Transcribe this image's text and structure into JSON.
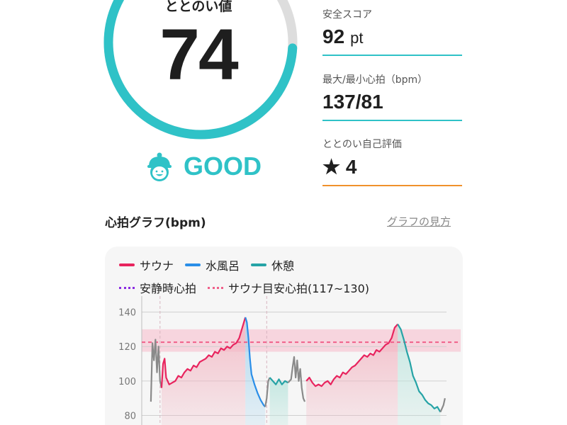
{
  "gauge": {
    "title": "ととのい値",
    "value": "74",
    "score": 74,
    "max": 100,
    "status": "GOOD",
    "status_icon": "mascot-face-icon",
    "accent": "#2fc2c7",
    "track": "#dddddd"
  },
  "stats": [
    {
      "label": "安全スコア",
      "value": "92",
      "unit": "pt",
      "line_color": "#2fc2c7"
    },
    {
      "label": "最大/最小心拍（bpm）",
      "value": "137/81",
      "unit": "",
      "line_color": "#2fc2c7"
    },
    {
      "label": "ととのい自己評価",
      "value": "★ 4",
      "unit": "",
      "line_color": "#f0912c"
    }
  ],
  "section": {
    "title": "心拍グラフ(bpm)",
    "link": "グラフの見方"
  },
  "chart_data": {
    "type": "line",
    "legend": [
      {
        "name": "サウナ",
        "color": "#e8245e",
        "style": "solid"
      },
      {
        "name": "水風呂",
        "color": "#2a8ee8",
        "style": "solid"
      },
      {
        "name": "休憩",
        "color": "#26a3a6",
        "style": "solid"
      },
      {
        "name": "安静時心拍",
        "color": "#8a2be2",
        "style": "dotted"
      },
      {
        "name": "サウナ目安心拍(117~130)",
        "color": "#f0608a",
        "style": "dotted"
      }
    ],
    "y_ticks": [
      80,
      100,
      120,
      140
    ],
    "ylim": [
      72,
      146
    ],
    "xlim": [
      0,
      100
    ],
    "target_band": [
      117,
      130
    ],
    "target_line": 122.5,
    "session_starts": [
      6,
      41
    ],
    "segments": [
      {
        "kind": "other",
        "points": [
          [
            3,
            88
          ],
          [
            3.5,
            122
          ],
          [
            4,
            112
          ],
          [
            4.5,
            124
          ],
          [
            5,
            105
          ],
          [
            5.5,
            120
          ],
          [
            6,
            100
          ],
          [
            6.5,
            96
          ]
        ]
      },
      {
        "kind": "sauna",
        "points": [
          [
            6.5,
            96
          ],
          [
            7,
            110
          ],
          [
            7.5,
            113
          ],
          [
            8,
            102
          ],
          [
            9,
            98
          ],
          [
            10,
            99
          ],
          [
            11,
            100
          ],
          [
            12,
            103
          ],
          [
            13,
            102
          ],
          [
            14,
            105
          ],
          [
            15,
            107
          ],
          [
            16,
            106
          ],
          [
            17,
            109
          ],
          [
            18,
            108
          ],
          [
            19,
            111
          ],
          [
            20,
            112
          ],
          [
            21,
            113
          ],
          [
            22,
            115
          ],
          [
            23,
            114
          ],
          [
            24,
            117
          ],
          [
            25,
            116
          ],
          [
            26,
            119
          ],
          [
            27,
            118
          ],
          [
            28,
            120
          ],
          [
            29,
            119
          ],
          [
            30,
            121
          ],
          [
            31,
            122
          ],
          [
            32,
            125
          ],
          [
            33,
            131
          ],
          [
            34,
            137
          ]
        ]
      },
      {
        "kind": "cold",
        "points": [
          [
            34,
            137
          ],
          [
            34.5,
            134
          ],
          [
            35,
            125
          ],
          [
            35.5,
            113
          ],
          [
            36,
            104
          ],
          [
            37,
            98
          ],
          [
            38,
            93
          ],
          [
            39,
            89
          ],
          [
            40,
            86
          ],
          [
            40.5,
            85
          ]
        ]
      },
      {
        "kind": "other",
        "points": [
          [
            40.5,
            85
          ],
          [
            41,
            90
          ],
          [
            41.5,
            100
          ],
          [
            42,
            102
          ]
        ]
      },
      {
        "kind": "rest",
        "points": [
          [
            42,
            102
          ],
          [
            44,
            98
          ],
          [
            45,
            101
          ],
          [
            46,
            98
          ],
          [
            47,
            100
          ],
          [
            48,
            99
          ]
        ]
      },
      {
        "kind": "other",
        "points": [
          [
            48,
            99
          ],
          [
            49,
            101
          ],
          [
            49.5,
            108
          ],
          [
            50,
            114
          ],
          [
            50.5,
            102
          ],
          [
            51,
            112
          ],
          [
            51.5,
            100
          ],
          [
            52,
            107
          ],
          [
            52.5,
            96
          ],
          [
            53,
            90
          ],
          [
            53.5,
            88
          ]
        ]
      },
      {
        "kind": "sauna",
        "points": [
          [
            54,
            100
          ],
          [
            55,
            102
          ],
          [
            56,
            99
          ],
          [
            57,
            97
          ],
          [
            58,
            98
          ],
          [
            59,
            97
          ],
          [
            60,
            99
          ],
          [
            61,
            100
          ],
          [
            62,
            98
          ],
          [
            63,
            101
          ],
          [
            64,
            103
          ],
          [
            65,
            102
          ],
          [
            66,
            105
          ],
          [
            67,
            104
          ],
          [
            68,
            106
          ],
          [
            69,
            108
          ],
          [
            70,
            109
          ],
          [
            71,
            111
          ],
          [
            72,
            113
          ],
          [
            73,
            115
          ],
          [
            74,
            114
          ],
          [
            75,
            116
          ],
          [
            76,
            115
          ],
          [
            77,
            118
          ],
          [
            78,
            117
          ],
          [
            79,
            119
          ],
          [
            80,
            121
          ],
          [
            81,
            122
          ],
          [
            82,
            125
          ],
          [
            83,
            131
          ],
          [
            84,
            133
          ]
        ]
      },
      {
        "kind": "rest",
        "points": [
          [
            84,
            133
          ],
          [
            85,
            130
          ],
          [
            86,
            124
          ],
          [
            87,
            117
          ],
          [
            88,
            111
          ],
          [
            89,
            103
          ],
          [
            90,
            99
          ],
          [
            91,
            94
          ],
          [
            92,
            92
          ],
          [
            93,
            89
          ],
          [
            94,
            87
          ],
          [
            95,
            86
          ],
          [
            96,
            84
          ],
          [
            97,
            85
          ],
          [
            98,
            82
          ]
        ]
      },
      {
        "kind": "other",
        "points": [
          [
            98,
            82
          ],
          [
            99,
            86
          ],
          [
            99.5,
            90
          ]
        ]
      }
    ]
  }
}
